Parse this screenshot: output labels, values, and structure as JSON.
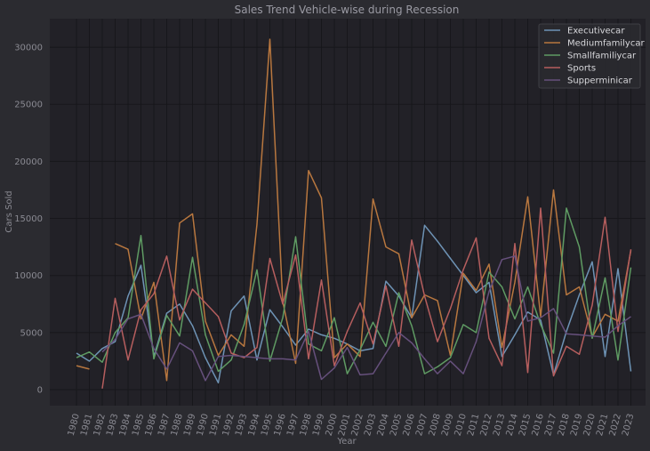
{
  "chart_data": {
    "type": "line",
    "title": "Sales Trend Vehicle-wise during Recession",
    "xlabel": "Year",
    "ylabel": "Cars Sold",
    "ylim": [
      -1400,
      32500
    ],
    "yticks": [
      0,
      5000,
      10000,
      15000,
      20000,
      25000,
      30000
    ],
    "grid": true,
    "legend_position": "top-right",
    "x": [
      1980,
      1981,
      1982,
      1983,
      1984,
      1985,
      1986,
      1987,
      1988,
      1989,
      1990,
      1991,
      1992,
      1993,
      1994,
      1995,
      1996,
      1997,
      1998,
      1999,
      2000,
      2001,
      2002,
      2003,
      2004,
      2005,
      2006,
      2007,
      2008,
      2009,
      2010,
      2011,
      2012,
      2013,
      2014,
      2015,
      2016,
      2017,
      2018,
      2019,
      2020,
      2021,
      2022,
      2023
    ],
    "series": [
      {
        "name": "Executivecar",
        "color": "#6e93b5",
        "values": [
          3200,
          2500,
          3600,
          4200,
          8200,
          10900,
          2900,
          6700,
          7500,
          5600,
          2800,
          600,
          6900,
          8200,
          2600,
          7000,
          5500,
          3900,
          5300,
          4800,
          4500,
          4000,
          3400,
          3600,
          9500,
          8200,
          6300,
          14400,
          13000,
          11500,
          10000,
          8500,
          9400,
          2900,
          4800,
          6800,
          6100,
          1300,
          5100,
          8300,
          11200,
          2900,
          10600,
          1600
        ]
      },
      {
        "name": "Mediumfamilycar",
        "color": "#b8773f",
        "values": [
          2100,
          1800,
          null,
          12800,
          12300,
          6200,
          9400,
          800,
          14600,
          15400,
          6000,
          3000,
          4800,
          3800,
          14500,
          30700,
          7700,
          2300,
          19200,
          16800,
          2800,
          4000,
          2900,
          16700,
          12500,
          11900,
          6300,
          8300,
          7800,
          3000,
          10200,
          8700,
          11000,
          3700,
          9400,
          16900,
          6400,
          17500,
          8300,
          9000,
          4600,
          6600,
          6000,
          12200
        ]
      },
      {
        "name": "Smallfamiliycar",
        "color": "#5f9b63",
        "values": [
          2800,
          3300,
          2400,
          5000,
          6300,
          13500,
          2700,
          6500,
          4700,
          11600,
          4800,
          1600,
          2600,
          5700,
          10500,
          2500,
          6300,
          13400,
          4000,
          3400,
          6300,
          1400,
          3500,
          5900,
          3800,
          8500,
          5600,
          1400,
          2000,
          2800,
          5700,
          5000,
          10300,
          9000,
          6200,
          9000,
          5700,
          3200,
          15900,
          12500,
          4500,
          9800,
          2600,
          10700
        ]
      },
      {
        "name": "Sports",
        "color": "#b65e5e",
        "values": [
          null,
          null,
          100,
          8000,
          2600,
          7000,
          8400,
          11700,
          6100,
          8800,
          7600,
          6400,
          3200,
          2800,
          3700,
          11500,
          7500,
          11800,
          2700,
          9600,
          2100,
          5100,
          7600,
          4000,
          9100,
          3800,
          13100,
          8200,
          4200,
          7100,
          10500,
          13300,
          4500,
          2100,
          12800,
          1500,
          15900,
          1200,
          3800,
          3100,
          7400,
          15100,
          5100,
          12300
        ]
      },
      {
        "name": "Supperminicar",
        "color": "#66507c",
        "values": [
          null,
          null,
          3300,
          4400,
          6200,
          6600,
          3600,
          1800,
          4100,
          3400,
          800,
          2900,
          3000,
          2900,
          2800,
          2700,
          2700,
          2600,
          5100,
          900,
          1900,
          3700,
          1300,
          1400,
          3200,
          5000,
          4100,
          2700,
          1400,
          2500,
          1400,
          4200,
          8600,
          11400,
          11700,
          6000,
          6300,
          7100,
          4900,
          4800,
          4700,
          4600,
          5600,
          6400
        ]
      }
    ]
  }
}
